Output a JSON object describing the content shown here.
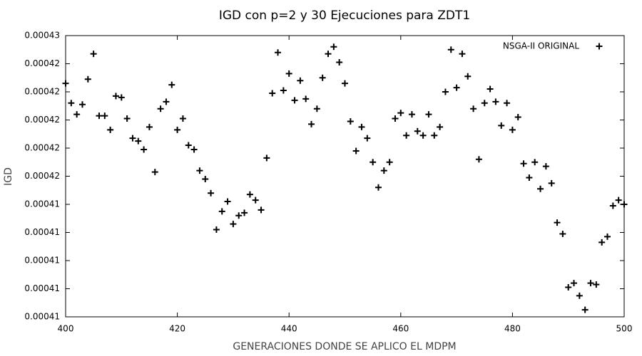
{
  "chart_data": {
    "type": "scatter",
    "title": "IGD con p=2 y 30 Ejecuciones para ZDT1",
    "x_label": "GENERACIONES DONDE SE APLICO EL MDPM",
    "y_label": "IGD",
    "x": [
      400,
      401,
      402,
      403,
      404,
      405,
      406,
      407,
      408,
      409,
      410,
      411,
      412,
      413,
      414,
      415,
      416,
      417,
      418,
      419,
      420,
      421,
      422,
      423,
      424,
      425,
      426,
      427,
      428,
      429,
      430,
      431,
      432,
      433,
      434,
      435,
      436,
      437,
      438,
      439,
      440,
      441,
      442,
      443,
      444,
      445,
      446,
      447,
      448,
      449,
      450,
      451,
      452,
      453,
      454,
      455,
      456,
      457,
      458,
      459,
      460,
      461,
      462,
      463,
      464,
      465,
      466,
      467,
      468,
      469,
      470,
      471,
      472,
      473,
      474,
      475,
      476,
      477,
      478,
      479,
      480,
      481,
      482,
      483,
      484,
      485,
      486,
      487,
      488,
      489,
      490,
      491,
      492,
      493,
      494,
      495,
      496,
      497,
      498,
      499,
      500
    ],
    "series": [
      {
        "name": "NSGA-II ORIGINAL",
        "color": "#000000",
        "values": [
          0.0004226,
          0.0004212,
          0.0004204,
          0.0004211,
          0.0004229,
          0.0004247,
          0.0004203,
          0.0004203,
          0.0004193,
          0.0004217,
          0.0004216,
          0.0004201,
          0.0004187,
          0.0004185,
          0.0004179,
          0.0004195,
          0.0004163,
          0.0004208,
          0.0004213,
          0.0004225,
          0.0004193,
          0.0004201,
          0.0004182,
          0.0004179,
          0.0004164,
          0.0004158,
          0.0004148,
          0.0004122,
          0.0004135,
          0.0004142,
          0.0004126,
          0.0004132,
          0.0004134,
          0.0004147,
          0.0004143,
          0.0004136,
          0.0004173,
          0.0004219,
          0.0004248,
          0.0004221,
          0.0004233,
          0.0004214,
          0.0004228,
          0.0004215,
          0.0004197,
          0.0004208,
          0.000423,
          0.0004247,
          0.0004252,
          0.0004241,
          0.0004226,
          0.0004199,
          0.0004178,
          0.0004195,
          0.0004187,
          0.000417,
          0.0004152,
          0.0004164,
          0.000417,
          0.0004201,
          0.0004205,
          0.0004189,
          0.0004204,
          0.0004192,
          0.0004189,
          0.0004204,
          0.0004189,
          0.0004195,
          0.000422,
          0.000425,
          0.0004223,
          0.0004247,
          0.0004231,
          0.0004208,
          0.0004172,
          0.0004212,
          0.0004222,
          0.0004213,
          0.0004196,
          0.0004212,
          0.0004193,
          0.0004202,
          0.0004169,
          0.0004159,
          0.000417,
          0.0004151,
          0.0004167,
          0.0004155,
          0.0004127,
          0.0004119,
          0.0004081,
          0.0004084,
          0.0004075,
          0.0004065,
          0.0004084,
          0.0004083,
          0.0004113,
          0.0004117,
          0.0004139,
          0.0004143,
          0.000414
        ]
      }
    ],
    "xlim": [
      400,
      500
    ],
    "xticks": [
      400,
      420,
      440,
      460,
      480,
      500
    ],
    "ylim": [
      0.000406,
      0.000426
    ],
    "yticks": [
      {
        "value": 0.000406,
        "label": "0.00041"
      },
      {
        "value": 0.000408,
        "label": "0.00041"
      },
      {
        "value": 0.00041,
        "label": "0.00041"
      },
      {
        "value": 0.000412,
        "label": "0.00041"
      },
      {
        "value": 0.000414,
        "label": "0.00041"
      },
      {
        "value": 0.000416,
        "label": "0.00042"
      },
      {
        "value": 0.000418,
        "label": "0.00042"
      },
      {
        "value": 0.00042,
        "label": "0.00042"
      },
      {
        "value": 0.000422,
        "label": "0.00042"
      },
      {
        "value": 0.000424,
        "label": "0.00042"
      },
      {
        "value": 0.000426,
        "label": "0.00043"
      }
    ],
    "legend": "top-right",
    "grid": false
  }
}
